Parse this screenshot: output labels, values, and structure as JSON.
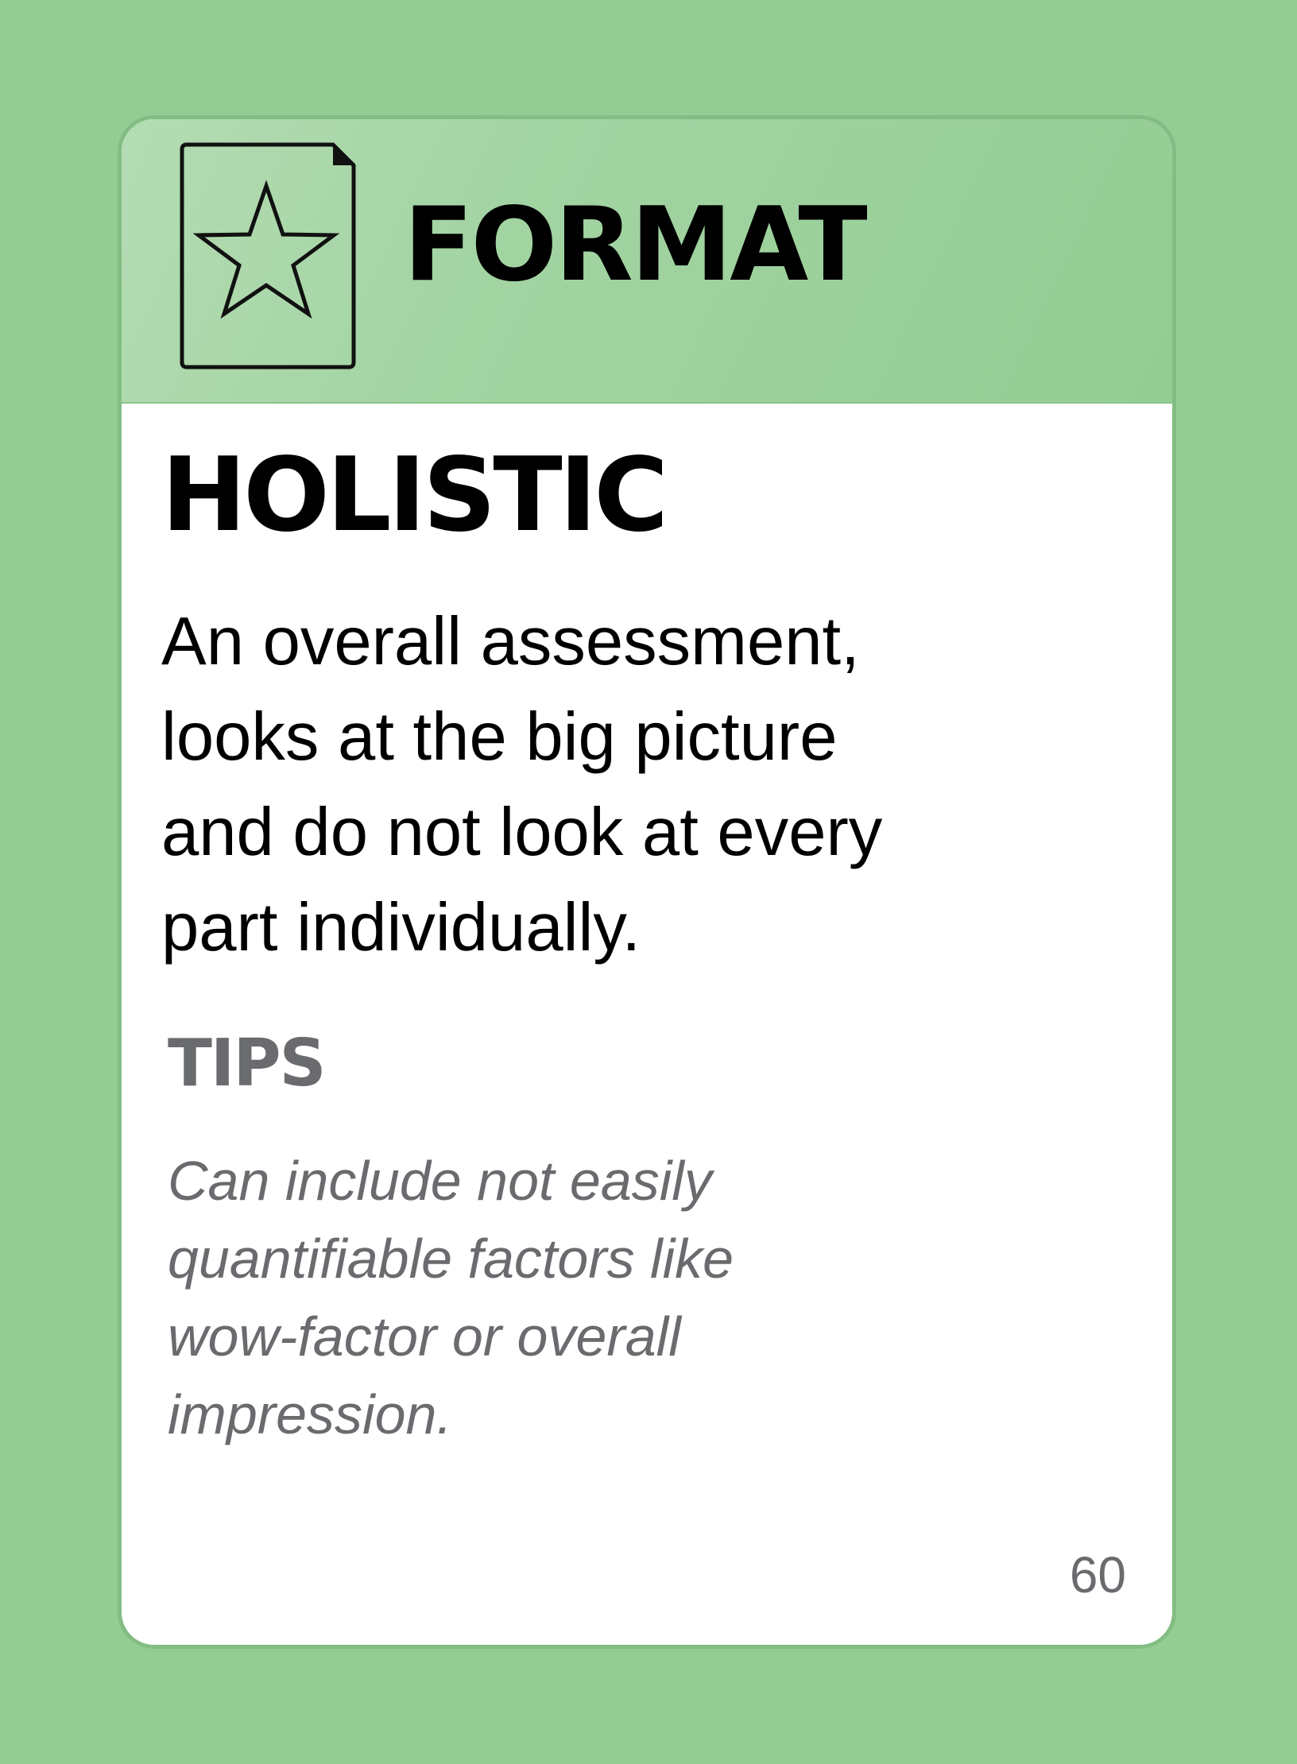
{
  "card": {
    "category": "FORMAT",
    "category_icon": "document-star-icon",
    "title": "HOLISTIC",
    "definition": "An overall assessment,\nlooks at the big picture\nand do not look at every\npart individually.",
    "tips_heading": "TIPS",
    "tips_text": "Can include not easily\nquantifiable factors like\nwow-factor or overall\nimpression.",
    "page_number": "60"
  },
  "colors": {
    "background": "#93cd93",
    "card_border": "#83bd83",
    "header_light": "#b4dcb4",
    "header_dark": "#93cd93",
    "tips_text": "#6a6b6e"
  }
}
